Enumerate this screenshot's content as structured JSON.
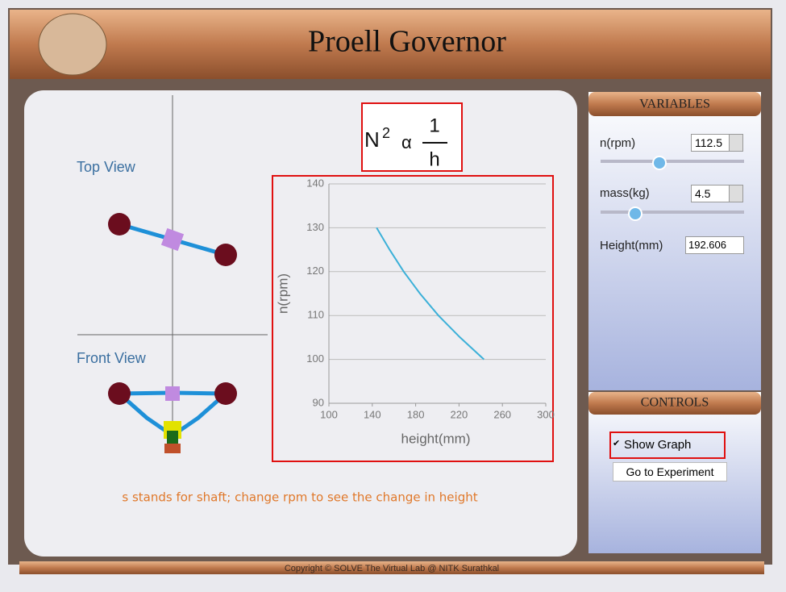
{
  "header": {
    "title": "Proell Governor"
  },
  "formula": {
    "base": "N",
    "exponent": "2",
    "relation": "α",
    "numerator": "1",
    "denominator": "h"
  },
  "views": {
    "top": "Top View",
    "front": "Front View"
  },
  "note": "s stands for shaft; change rpm to see the change in height",
  "variables": {
    "title": "VARIABLES",
    "fields": [
      {
        "label": "n(rpm)",
        "value": "112.5"
      },
      {
        "label": "mass(kg)",
        "value": "4.5"
      },
      {
        "label": "Height(mm)",
        "value": "192.606"
      }
    ]
  },
  "controls": {
    "title": "CONTROLS",
    "show_graph": "Show Graph",
    "go": "Go to Experiment"
  },
  "footer": "Copyright © SOLVE The Virtual Lab @ NITK Surathkal",
  "chart_data": {
    "type": "line",
    "x_label": "height(mm)",
    "y_label": "n(rpm)",
    "x": [
      144,
      156,
      169,
      184,
      201,
      221,
      243
    ],
    "series": [
      {
        "name": "n(rpm)",
        "color": "#3bb0d8",
        "values": [
          130,
          125,
          120,
          115,
          110,
          105,
          100
        ]
      }
    ],
    "xlim": [
      100,
      300
    ],
    "xticks": [
      100,
      140,
      180,
      220,
      260,
      300
    ],
    "ylim": [
      90,
      140
    ],
    "yticks": [
      90,
      100,
      110,
      120,
      130,
      140
    ],
    "grid": true
  }
}
